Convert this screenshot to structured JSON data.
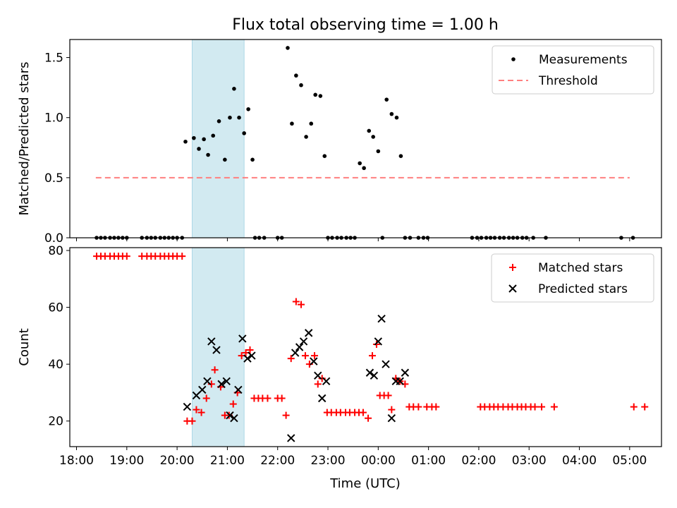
{
  "title": "Flux total observing time = 1.00 h",
  "x_axis": {
    "label": "Time (UTC)",
    "ticks": [
      {
        "t": 18,
        "label": "18:00"
      },
      {
        "t": 19,
        "label": "19:00"
      },
      {
        "t": 20,
        "label": "20:00"
      },
      {
        "t": 21,
        "label": "21:00"
      },
      {
        "t": 22,
        "label": "22:00"
      },
      {
        "t": 23,
        "label": "23:00"
      },
      {
        "t": 24,
        "label": "00:00"
      },
      {
        "t": 25,
        "label": "01:00"
      },
      {
        "t": 26,
        "label": "02:00"
      },
      {
        "t": 27,
        "label": "03:00"
      },
      {
        "t": 28,
        "label": "04:00"
      },
      {
        "t": 29,
        "label": "05:00"
      }
    ]
  },
  "highlight": {
    "start_time": "20:18",
    "end_time": "21:20",
    "color": "#add8e6"
  },
  "colors": {
    "measurements": "#000000",
    "threshold": "#ff7f7f",
    "matched": "#ff0000",
    "predicted": "#000000",
    "span": "#add8e6"
  },
  "chart_data": [
    {
      "type": "scatter",
      "ylabel": "Matched/Predicted stars",
      "xlim": [
        "17:52",
        "05:38"
      ],
      "ylim": [
        0,
        1.65
      ],
      "yticks": [
        {
          "v": 0,
          "label": "0.0"
        },
        {
          "v": 0.5,
          "label": "0.5"
        },
        {
          "v": 1,
          "label": "1.0"
        },
        {
          "v": 1.5,
          "label": "1.5"
        }
      ],
      "legend": {
        "position": "top-right",
        "items": [
          "Measurements",
          "Threshold"
        ]
      },
      "threshold": {
        "name": "Threshold",
        "y": 0.5,
        "x_start": "18:23",
        "x_end": "05:00"
      },
      "series": [
        {
          "name": "Measurements",
          "points": [
            [
              "18:24",
              0
            ],
            [
              "18:29",
              0
            ],
            [
              "18:34",
              0
            ],
            [
              "18:40",
              0
            ],
            [
              "18:45",
              0
            ],
            [
              "18:50",
              0
            ],
            [
              "18:55",
              0
            ],
            [
              "19:00",
              0
            ],
            [
              "19:18",
              0
            ],
            [
              "19:24",
              0
            ],
            [
              "19:29",
              0
            ],
            [
              "19:34",
              0
            ],
            [
              "19:40",
              0
            ],
            [
              "19:45",
              0
            ],
            [
              "19:50",
              0
            ],
            [
              "19:55",
              0
            ],
            [
              "20:00",
              0
            ],
            [
              "20:06",
              0
            ],
            [
              "20:10",
              0.8
            ],
            [
              "20:20",
              0.83
            ],
            [
              "20:26",
              0.74
            ],
            [
              "20:32",
              0.82
            ],
            [
              "20:37",
              0.69
            ],
            [
              "20:43",
              0.85
            ],
            [
              "20:50",
              0.97
            ],
            [
              "20:57",
              0.65
            ],
            [
              "21:03",
              1.0
            ],
            [
              "21:08",
              1.24
            ],
            [
              "21:14",
              1.0
            ],
            [
              "21:20",
              0.87
            ],
            [
              "21:25",
              1.07
            ],
            [
              "21:30",
              0.65
            ],
            [
              "21:33",
              0
            ],
            [
              "21:38",
              0
            ],
            [
              "21:44",
              0
            ],
            [
              "22:00",
              0
            ],
            [
              "22:05",
              0
            ],
            [
              "22:12",
              1.58
            ],
            [
              "22:17",
              0.95
            ],
            [
              "22:22",
              1.35
            ],
            [
              "22:28",
              1.27
            ],
            [
              "22:34",
              0.84
            ],
            [
              "22:40",
              0.95
            ],
            [
              "22:45",
              1.19
            ],
            [
              "22:51",
              1.18
            ],
            [
              "22:56",
              0.68
            ],
            [
              "23:00",
              0
            ],
            [
              "23:05",
              0
            ],
            [
              "23:11",
              0
            ],
            [
              "23:16",
              0
            ],
            [
              "23:22",
              0
            ],
            [
              "23:27",
              0
            ],
            [
              "23:32",
              0
            ],
            [
              "23:38",
              0.62
            ],
            [
              "23:43",
              0.58
            ],
            [
              "23:49",
              0.89
            ],
            [
              "23:54",
              0.84
            ],
            [
              "00:00",
              0.72
            ],
            [
              "00:05",
              0
            ],
            [
              "00:10",
              1.15
            ],
            [
              "00:16",
              1.03
            ],
            [
              "00:22",
              1.0
            ],
            [
              "00:27",
              0.68
            ],
            [
              "00:32",
              0
            ],
            [
              "00:38",
              0
            ],
            [
              "00:48",
              0
            ],
            [
              "00:54",
              0
            ],
            [
              "00:59",
              0
            ],
            [
              "01:52",
              0
            ],
            [
              "01:58",
              0
            ],
            [
              "02:03",
              0
            ],
            [
              "02:09",
              0
            ],
            [
              "02:14",
              0
            ],
            [
              "02:19",
              0
            ],
            [
              "02:25",
              0
            ],
            [
              "02:30",
              0
            ],
            [
              "02:36",
              0
            ],
            [
              "02:41",
              0
            ],
            [
              "02:46",
              0
            ],
            [
              "02:52",
              0
            ],
            [
              "02:57",
              0
            ],
            [
              "03:05",
              0
            ],
            [
              "03:20",
              0
            ],
            [
              "04:50",
              0
            ],
            [
              "05:04",
              0
            ]
          ]
        }
      ]
    },
    {
      "type": "scatter",
      "ylabel": "Count",
      "xlim": [
        "17:52",
        "05:38"
      ],
      "ylim": [
        11,
        81
      ],
      "yticks": [
        {
          "v": 20,
          "label": "20"
        },
        {
          "v": 40,
          "label": "40"
        },
        {
          "v": 60,
          "label": "60"
        },
        {
          "v": 80,
          "label": "80"
        }
      ],
      "legend": {
        "position": "top-right",
        "items": [
          "Matched stars",
          "Predicted stars"
        ]
      },
      "series": [
        {
          "name": "Matched stars",
          "marker": "+",
          "points": [
            [
              "18:24",
              78
            ],
            [
              "18:29",
              78
            ],
            [
              "18:34",
              78
            ],
            [
              "18:40",
              78
            ],
            [
              "18:45",
              78
            ],
            [
              "18:50",
              78
            ],
            [
              "18:55",
              78
            ],
            [
              "19:00",
              78
            ],
            [
              "19:18",
              78
            ],
            [
              "19:24",
              78
            ],
            [
              "19:29",
              78
            ],
            [
              "19:34",
              78
            ],
            [
              "19:40",
              78
            ],
            [
              "19:45",
              78
            ],
            [
              "19:50",
              78
            ],
            [
              "19:55",
              78
            ],
            [
              "20:00",
              78
            ],
            [
              "20:06",
              78
            ],
            [
              "20:12",
              20
            ],
            [
              "20:18",
              20
            ],
            [
              "20:23",
              24
            ],
            [
              "20:29",
              23
            ],
            [
              "20:35",
              28
            ],
            [
              "20:41",
              33
            ],
            [
              "20:45",
              38
            ],
            [
              "20:52",
              32
            ],
            [
              "20:57",
              22
            ],
            [
              "21:02",
              22
            ],
            [
              "21:07",
              26
            ],
            [
              "21:12",
              30
            ],
            [
              "21:17",
              43
            ],
            [
              "21:22",
              44
            ],
            [
              "21:27",
              45
            ],
            [
              "21:32",
              28
            ],
            [
              "21:37",
              28
            ],
            [
              "21:42",
              28
            ],
            [
              "21:48",
              28
            ],
            [
              "22:00",
              28
            ],
            [
              "22:05",
              28
            ],
            [
              "22:10",
              22
            ],
            [
              "22:16",
              42
            ],
            [
              "22:22",
              62
            ],
            [
              "22:28",
              61
            ],
            [
              "22:33",
              43
            ],
            [
              "22:38",
              40
            ],
            [
              "22:44",
              43
            ],
            [
              "22:48",
              33
            ],
            [
              "22:53",
              35
            ],
            [
              "22:59",
              23
            ],
            [
              "23:04",
              23
            ],
            [
              "23:10",
              23
            ],
            [
              "23:15",
              23
            ],
            [
              "23:21",
              23
            ],
            [
              "23:26",
              23
            ],
            [
              "23:32",
              23
            ],
            [
              "23:37",
              23
            ],
            [
              "23:42",
              23
            ],
            [
              "23:48",
              21
            ],
            [
              "23:53",
              43
            ],
            [
              "23:58",
              47
            ],
            [
              "24:02",
              29
            ],
            [
              "24:07",
              29
            ],
            [
              "24:12",
              29
            ],
            [
              "24:16",
              24
            ],
            [
              "24:21",
              35
            ],
            [
              "24:26",
              34
            ],
            [
              "24:32",
              33
            ],
            [
              "24:37",
              25
            ],
            [
              "24:42",
              25
            ],
            [
              "24:48",
              25
            ],
            [
              "24:58",
              25
            ],
            [
              "25:04",
              25
            ],
            [
              "25:09",
              25
            ],
            [
              "26:02",
              25
            ],
            [
              "26:07",
              25
            ],
            [
              "26:13",
              25
            ],
            [
              "26:18",
              25
            ],
            [
              "26:23",
              25
            ],
            [
              "26:29",
              25
            ],
            [
              "26:35",
              25
            ],
            [
              "26:40",
              25
            ],
            [
              "26:46",
              25
            ],
            [
              "26:51",
              25
            ],
            [
              "26:56",
              25
            ],
            [
              "27:02",
              25
            ],
            [
              "27:07",
              25
            ],
            [
              "27:15",
              25
            ],
            [
              "27:30",
              25
            ],
            [
              "29:05",
              25
            ],
            [
              "29:18",
              25
            ]
          ]
        },
        {
          "name": "Predicted stars",
          "marker": "x",
          "points": [
            [
              "20:12",
              25
            ],
            [
              "20:23",
              29
            ],
            [
              "20:30",
              31
            ],
            [
              "20:36",
              34
            ],
            [
              "20:41",
              48
            ],
            [
              "20:47",
              45
            ],
            [
              "20:53",
              33
            ],
            [
              "20:59",
              34
            ],
            [
              "21:03",
              22
            ],
            [
              "21:08",
              21
            ],
            [
              "21:13",
              31
            ],
            [
              "21:18",
              49
            ],
            [
              "21:24",
              42
            ],
            [
              "21:29",
              43
            ],
            [
              "22:16",
              14
            ],
            [
              "22:21",
              44
            ],
            [
              "22:26",
              46
            ],
            [
              "22:31",
              48
            ],
            [
              "22:37",
              51
            ],
            [
              "22:43",
              41
            ],
            [
              "22:48",
              36
            ],
            [
              "22:53",
              28
            ],
            [
              "22:58",
              34
            ],
            [
              "23:50",
              37
            ],
            [
              "23:55",
              36
            ],
            [
              "24:00",
              48
            ],
            [
              "24:04",
              56
            ],
            [
              "24:09",
              40
            ],
            [
              "24:16",
              21
            ],
            [
              "24:21",
              34
            ],
            [
              "24:26",
              34
            ],
            [
              "24:32",
              37
            ]
          ]
        }
      ]
    }
  ]
}
